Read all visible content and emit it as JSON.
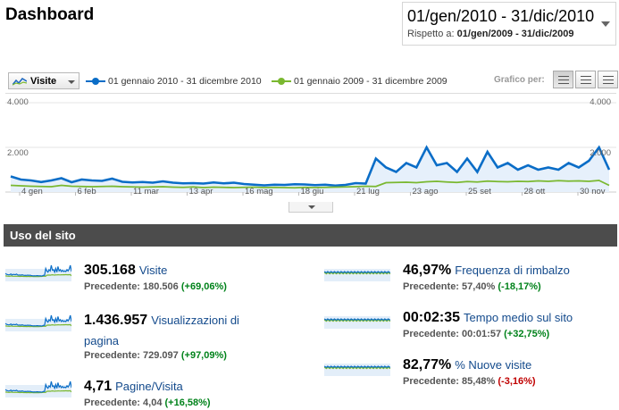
{
  "header": {
    "title": "Dashboard",
    "date_range": "01/gen/2010 - 31/dic/2010",
    "compare_label": "Rispetto a:",
    "compare_range": "01/gen/2009 - 31/dic/2009"
  },
  "chart_controls": {
    "metric_selector": "Visite",
    "legend": [
      {
        "label": "01 gennaio 2010 - 31 dicembre 2010",
        "color": "#0a6dc7"
      },
      {
        "label": "01 gennaio 2009 - 31 dicembre 2009",
        "color": "#7ab830"
      }
    ],
    "graph_by_label": "Grafico per:",
    "graph_buttons": [
      "giorno",
      "settimana",
      "mese"
    ]
  },
  "chart_data": {
    "type": "line",
    "ylim": [
      0,
      4000
    ],
    "y_ticks": [
      "4.000",
      "2.000"
    ],
    "x_ticks": [
      "4 gen",
      "6 feb",
      "11 mar",
      "13 apr",
      "16 mag",
      "18 giu",
      "21 lug",
      "23 ago",
      "25 set",
      "28 ott",
      "30 nov"
    ],
    "series": [
      {
        "name": "01 gennaio 2010 - 31 dicembre 2010",
        "color": "#0a6dc7",
        "values": [
          700,
          560,
          520,
          450,
          520,
          620,
          440,
          560,
          520,
          500,
          600,
          460,
          430,
          450,
          420,
          480,
          420,
          390,
          400,
          380,
          430,
          390,
          420,
          360,
          330,
          300,
          330,
          320,
          350,
          340,
          310,
          330,
          290,
          320,
          400,
          380,
          1500,
          1100,
          900,
          1300,
          1100,
          2000,
          1200,
          1300,
          900,
          1500,
          900,
          1800,
          1100,
          1300,
          1000,
          1200,
          1000,
          1100,
          1000,
          1300,
          1100,
          1400,
          2000,
          1000
        ]
      },
      {
        "name": "01 gennaio 2009 - 31 dicembre 2009",
        "color": "#7ab830",
        "values": [
          300,
          280,
          260,
          250,
          240,
          300,
          260,
          250,
          240,
          250,
          260,
          240,
          230,
          220,
          230,
          240,
          220,
          210,
          230,
          200,
          220,
          210,
          200,
          210,
          220,
          200,
          210,
          200,
          190,
          210,
          200,
          210,
          220,
          230,
          240,
          260,
          250,
          420,
          430,
          440,
          420,
          460,
          480,
          450,
          430,
          470,
          450,
          490,
          470,
          460,
          480,
          470,
          500,
          480,
          510,
          490,
          500,
          480,
          520,
          300
        ]
      }
    ]
  },
  "section": {
    "title": "Uso del sito"
  },
  "metrics": [
    {
      "value": "305.168",
      "name": "Visite",
      "prev": "Precedente: 180.506",
      "change": "(+69,06%)",
      "dir": "pos"
    },
    {
      "value": "1.436.957",
      "name": "Visualizzazioni di",
      "name2": "pagina",
      "prev": "Precedente: 729.097",
      "change": "(+97,09%)",
      "dir": "pos"
    },
    {
      "value": "4,71",
      "name": "Pagine/Visita",
      "prev": "Precedente: 4,04",
      "change": "(+16,58%)",
      "dir": "pos"
    },
    {
      "value": "46,97%",
      "name": "Frequenza di rimbalzo",
      "prev": "Precedente: 57,40%",
      "change": "(-18,17%)",
      "dir": "pos"
    },
    {
      "value": "00:02:35",
      "name": "Tempo medio sul sito",
      "prev": "Precedente: 00:01:57",
      "change": "(+32,75%)",
      "dir": "pos"
    },
    {
      "value": "82,77%",
      "name": "% Nuove visite",
      "prev": "Precedente: 85,48%",
      "change": "(-3,16%)",
      "dir": "neg"
    }
  ]
}
